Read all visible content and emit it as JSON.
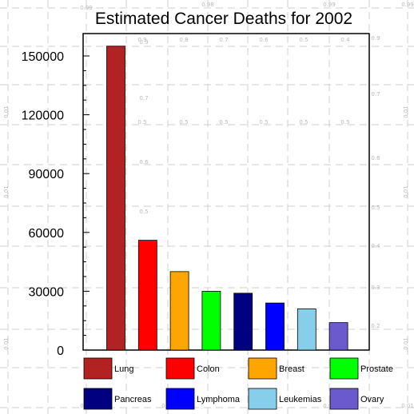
{
  "chart_data": {
    "type": "bar",
    "title": "Estimated Cancer Deaths for 2002",
    "xlabel": "",
    "ylabel": "",
    "categories": [
      "Lung",
      "Colon",
      "Breast",
      "Prostate",
      "Pancreas",
      "Lymphoma",
      "Leukemias",
      "Ovary"
    ],
    "values": [
      155000,
      56000,
      40000,
      30000,
      29000,
      24000,
      21000,
      14000
    ],
    "colors": [
      "#b22222",
      "#ff0000",
      "#ffa500",
      "#00ff00",
      "#000080",
      "#0000ff",
      "#87ceeb",
      "#6a5acd"
    ],
    "ylim": [
      0,
      160000
    ],
    "yticks": [
      "0",
      "30000",
      "60000",
      "90000",
      "120000",
      "150000"
    ],
    "ytick_values": [
      0,
      30000,
      60000,
      90000,
      120000,
      150000
    ],
    "grid": false,
    "legend": "below",
    "background_grid_labels": [
      "0.99",
      "0.98",
      "0.9",
      "0.8",
      "0.7",
      "0.6",
      "0.5",
      "0.4",
      "0.3",
      "0.2",
      "0.1",
      "0.01"
    ]
  }
}
